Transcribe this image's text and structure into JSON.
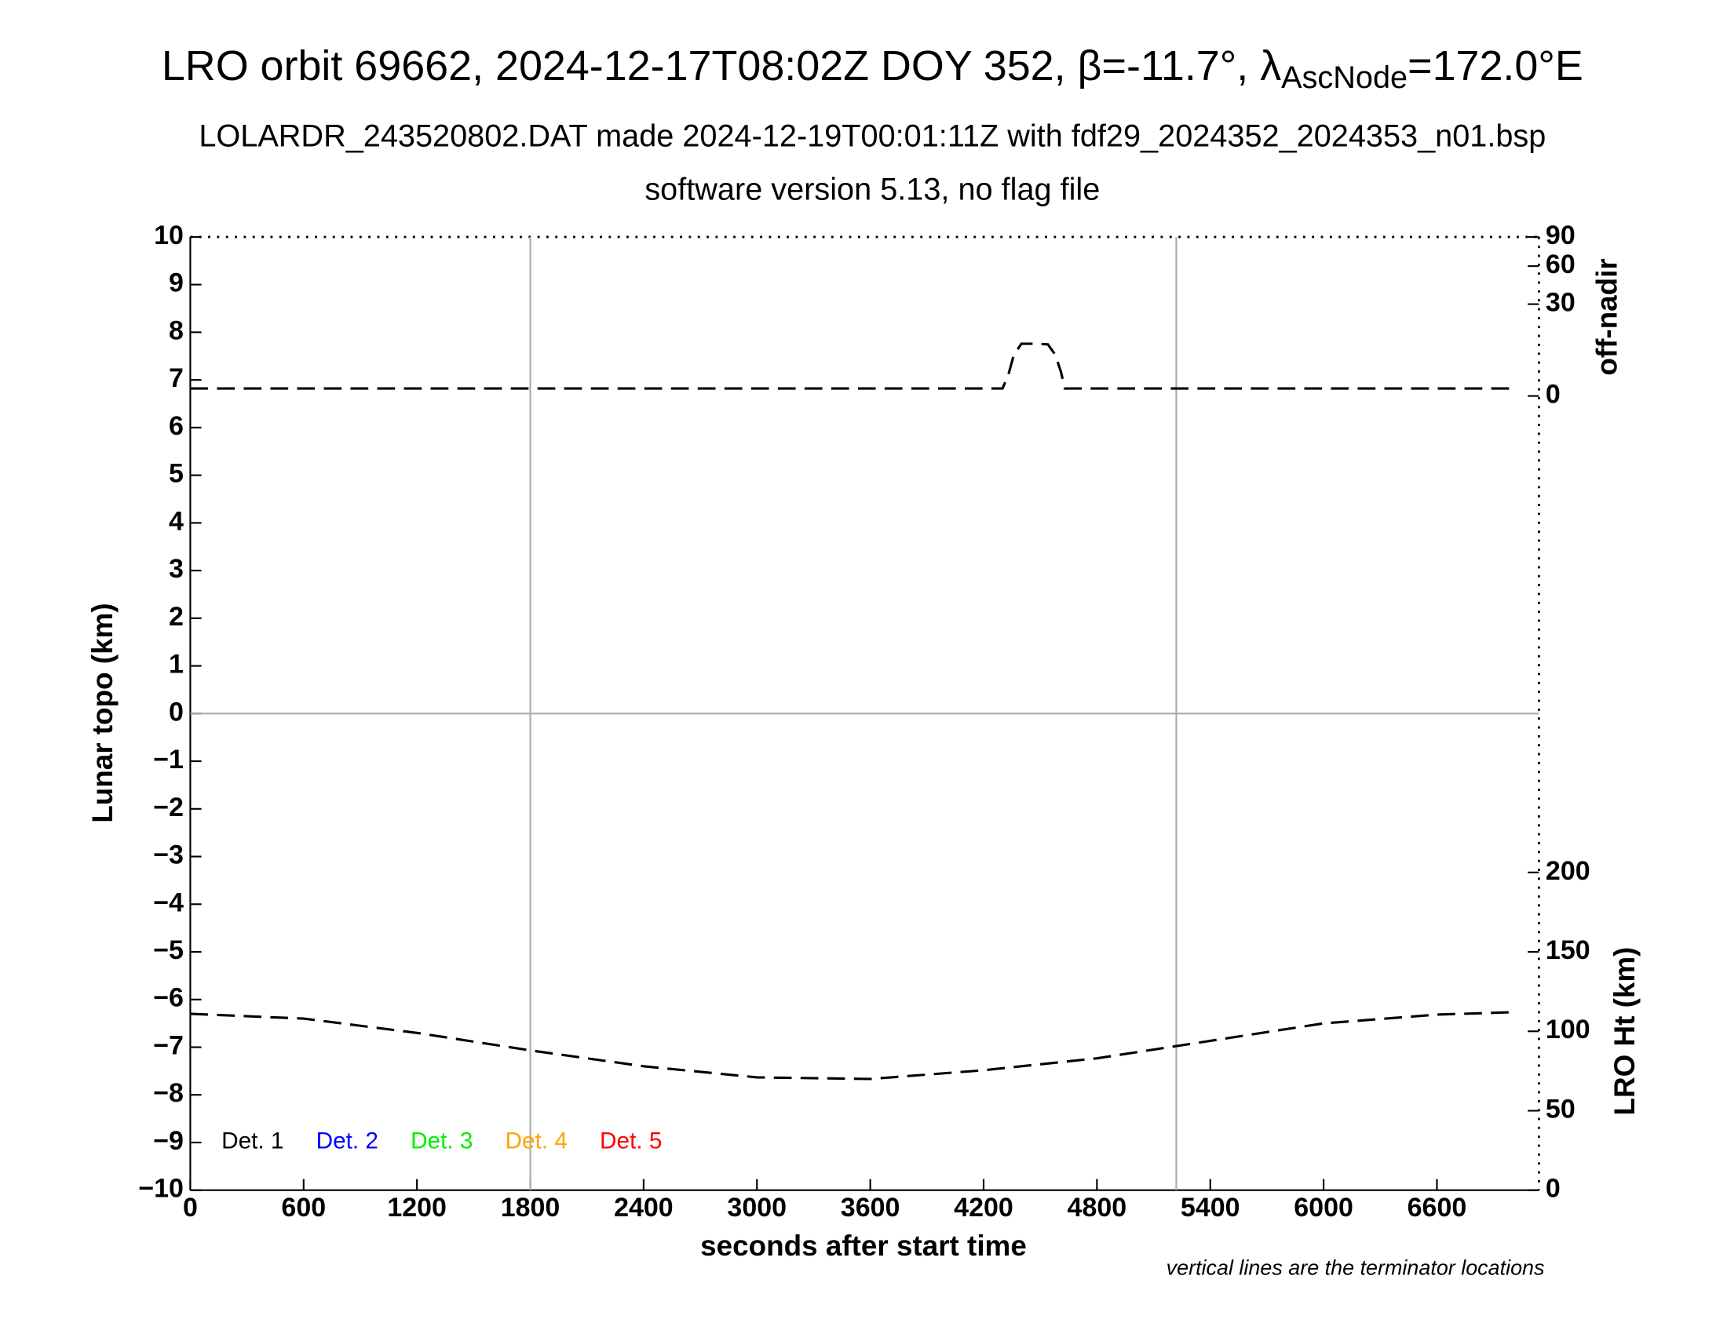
{
  "chart_data": {
    "type": "line",
    "title": {
      "main": "LRO orbit 69662, 2024-12-17T08:02Z DOY 352, β=-11.7°, λ",
      "sub": "AscNode",
      "tail": "=172.0°E"
    },
    "subtitle": "LOLARDR_243520802.DAT made 2024-12-19T00:01:11Z with fdf29_2024352_2024353_n01.bsp",
    "subtitle2": "software version 5.13, no flag file",
    "x_label": "seconds after start time",
    "y_label": "Lunar topo (km)",
    "y2_label": "off-nadir",
    "y3_label": "LRO Ht (km)",
    "note": "vertical lines are the terminator locations",
    "xlim": [
      0,
      7140
    ],
    "xticks": [
      0,
      600,
      1200,
      1800,
      2400,
      3000,
      3600,
      4200,
      4800,
      5400,
      6000,
      6600
    ],
    "ylim": [
      -10,
      10
    ],
    "yticks": [
      {
        "value": -10,
        "label": "−10"
      },
      {
        "value": -9,
        "label": "−9"
      },
      {
        "value": -8,
        "label": "−8"
      },
      {
        "value": -7,
        "label": "−7"
      },
      {
        "value": -6,
        "label": "−6"
      },
      {
        "value": -5,
        "label": "−5"
      },
      {
        "value": -4,
        "label": "−4"
      },
      {
        "value": -3,
        "label": "−3"
      },
      {
        "value": -2,
        "label": "−2"
      },
      {
        "value": -1,
        "label": "−1"
      },
      0,
      1,
      2,
      3,
      4,
      5,
      6,
      7,
      8,
      9,
      10
    ],
    "y2lim": [
      0,
      90
    ],
    "y2scale": "sqrt",
    "y2ticks": [
      0,
      30,
      60,
      90
    ],
    "y3lim": [
      0,
      600
    ],
    "y3ticks": [
      0,
      50,
      100,
      150,
      200
    ],
    "terminators": [
      1800,
      5220
    ],
    "series": [
      {
        "axis": "y2",
        "color": "#000000",
        "dash": true,
        "x": [
          0,
          4300,
          4330,
          4360,
          4400,
          4460,
          4540,
          4580,
          4610,
          4630,
          6990
        ],
        "values": [
          0.2,
          0.2,
          1.5,
          6,
          9.7,
          9.7,
          9.5,
          6,
          2,
          0.2,
          0.2
        ]
      },
      {
        "axis": "y3",
        "color": "#000000",
        "dash": true,
        "x": [
          0,
          600,
          1200,
          1800,
          2400,
          3000,
          3600,
          4200,
          4800,
          5400,
          6000,
          6600,
          6990
        ],
        "values": [
          111,
          108,
          99,
          88,
          78,
          71,
          70,
          75.5,
          83,
          94,
          105,
          110.5,
          112
        ]
      }
    ],
    "legend": [
      {
        "label": "Det. 1",
        "color": "#000000"
      },
      {
        "label": "Det. 2",
        "color": "#0000ff"
      },
      {
        "label": "Det. 3",
        "color": "#00ee00"
      },
      {
        "label": "Det. 4",
        "color": "#ffa500"
      },
      {
        "label": "Det. 5",
        "color": "#ff0000"
      }
    ]
  }
}
